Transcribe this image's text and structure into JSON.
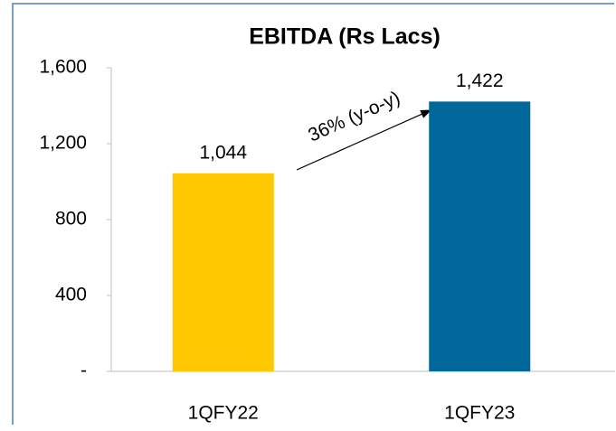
{
  "chart_data": {
    "type": "bar",
    "title": "EBITDA (Rs Lacs)",
    "categories": [
      "1QFY22",
      "1QFY23"
    ],
    "values": [
      1044,
      1422
    ],
    "value_labels": [
      "1,044",
      "1,422"
    ],
    "colors": [
      "#ffc800",
      "#00679a"
    ],
    "ylim": [
      0,
      1600
    ],
    "yticks": [
      {
        "value": 0,
        "label": "-"
      },
      400,
      800,
      {
        "value": 1200,
        "label": "1,200"
      },
      {
        "value": 1600,
        "label": "1,600"
      }
    ],
    "annotation": "36% (y-o-y)"
  }
}
